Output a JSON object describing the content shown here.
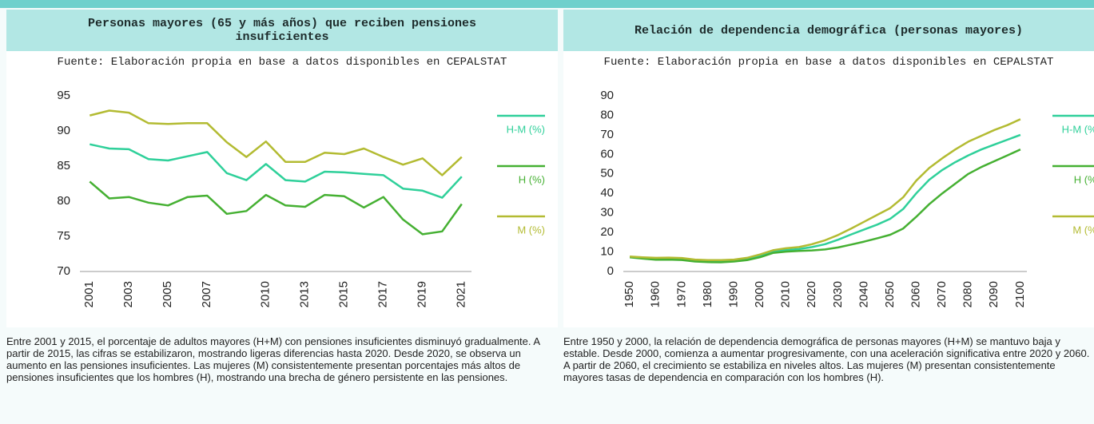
{
  "chart_data": [
    {
      "type": "line",
      "title": "Personas mayores (65 y más años) que reciben pensiones insuficientes",
      "source": "Fuente: Elaboración propia en base a datos disponibles en CEPALSTAT",
      "description": "Entre 2001 y 2015, el porcentaje de adultos mayores (H+M) con pensiones insuficientes disminuyó gradualmente. A partir de 2015, las cifras se estabilizaron, mostrando ligeras diferencias hasta 2020. Desde 2020, se observa un aumento en las pensiones insuficientes. Las mujeres (M) consistentemente presentan porcentajes más altos de pensiones insuficientes que los hombres (H), mostrando una brecha de género persistente en las pensiones.",
      "categories": [
        "2001",
        null,
        "2003",
        null,
        "2005",
        null,
        "2007",
        null,
        null,
        "2010",
        null,
        "2013",
        null,
        "2015",
        null,
        "2017",
        null,
        "2019",
        null,
        "2021"
      ],
      "series": [
        {
          "name": "H-M (%)",
          "color": "#2fd09a",
          "values": [
            88.1,
            87.5,
            87.4,
            86.0,
            85.8,
            86.4,
            87.0,
            84.0,
            83.0,
            85.3,
            83.0,
            82.8,
            84.2,
            84.1,
            83.9,
            83.7,
            81.8,
            81.5,
            80.5,
            83.5
          ]
        },
        {
          "name": "H (%)",
          "color": "#45b032",
          "values": [
            82.8,
            80.4,
            80.6,
            79.8,
            79.4,
            80.6,
            80.8,
            78.2,
            78.6,
            80.9,
            79.4,
            79.2,
            80.9,
            80.7,
            79.1,
            80.6,
            77.4,
            75.3,
            75.7,
            79.6
          ]
        },
        {
          "name": "M (%)",
          "color": "#b3bb32",
          "values": [
            92.2,
            92.9,
            92.6,
            91.1,
            91.0,
            91.1,
            91.1,
            88.4,
            86.3,
            88.5,
            85.6,
            85.6,
            86.9,
            86.7,
            87.5,
            86.3,
            85.2,
            86.1,
            83.7,
            86.3
          ]
        }
      ],
      "ylim": [
        70,
        95
      ],
      "yticks": [
        70,
        75,
        80,
        85,
        90,
        95
      ],
      "grid": false
    },
    {
      "type": "line",
      "title": "Relación de dependencia demográfica (personas mayores)",
      "source": "Fuente: Elaboración propia en base a datos disponibles en CEPALSTAT",
      "description": "Entre 1950 y 2000, la relación de dependencia demográfica de personas mayores (H+M) se mantuvo baja y estable. Desde 2000, comienza a aumentar progresivamente, con una aceleración significativa entre 2020 y 2060. A partir de 2060, el crecimiento se estabiliza en niveles altos. Las mujeres (M) presentan consistentemente mayores tasas de dependencia en comparación con los hombres (H).",
      "categories": [
        "1950",
        null,
        "1960",
        null,
        "1970",
        null,
        "1980",
        null,
        "1990",
        null,
        "2000",
        null,
        "2010",
        null,
        "2020",
        null,
        "2030",
        null,
        "2040",
        null,
        "2050",
        null,
        "2060",
        null,
        "2070",
        null,
        "2080",
        null,
        "2090",
        null,
        "2100"
      ],
      "series": [
        {
          "name": "H-M (%)",
          "color": "#2fd09a",
          "values": [
            7.5,
            7.0,
            6.5,
            6.6,
            6.4,
            5.6,
            5.3,
            5.2,
            5.6,
            6.4,
            8.0,
            10.2,
            11.0,
            11.5,
            12.5,
            14.0,
            16.3,
            19.0,
            21.5,
            24.0,
            27.0,
            32.0,
            40.0,
            47.0,
            52.0,
            56.0,
            59.5,
            62.5,
            65.0,
            67.5,
            70.0
          ]
        },
        {
          "name": "H (%)",
          "color": "#45b032",
          "values": [
            7.3,
            6.6,
            6.0,
            6.1,
            5.9,
            5.1,
            4.8,
            4.7,
            5.1,
            5.8,
            7.3,
            9.5,
            10.2,
            10.5,
            10.8,
            11.3,
            12.3,
            13.8,
            15.3,
            17.0,
            18.8,
            22.0,
            28.0,
            34.5,
            40.0,
            45.0,
            50.0,
            53.5,
            56.5,
            59.5,
            62.5
          ]
        },
        {
          "name": "M (%)",
          "color": "#b3bb32",
          "values": [
            7.7,
            7.3,
            7.0,
            7.1,
            6.9,
            6.1,
            5.8,
            5.8,
            6.1,
            7.0,
            8.7,
            10.9,
            11.9,
            12.5,
            14.0,
            16.0,
            18.7,
            22.0,
            25.5,
            29.0,
            32.5,
            38.0,
            46.5,
            53.0,
            58.0,
            62.5,
            66.5,
            69.5,
            72.5,
            75.0,
            78.0
          ]
        }
      ],
      "ylim": [
        0,
        90
      ],
      "yticks": [
        0,
        10,
        20,
        30,
        40,
        50,
        60,
        70,
        80,
        90
      ],
      "grid": false
    }
  ]
}
